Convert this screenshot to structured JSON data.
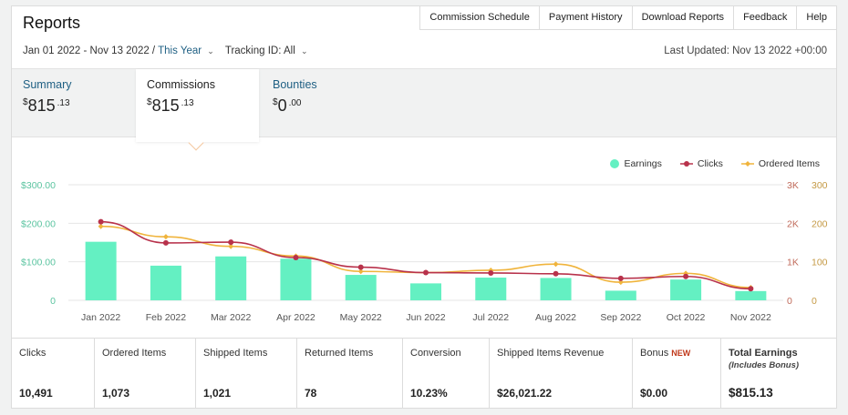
{
  "header": {
    "title": "Reports",
    "nav": [
      "Commission Schedule",
      "Payment History",
      "Download Reports",
      "Feedback",
      "Help"
    ]
  },
  "filters": {
    "date_range": "Jan 01 2022 - Nov 13 2022 /",
    "period": "This Year",
    "tracking": "Tracking ID: All",
    "last_updated": "Last Updated: Nov 13 2022 +00:00"
  },
  "tabs": [
    {
      "label": "Summary",
      "dollars": "815",
      "cents": "13"
    },
    {
      "label": "Commissions",
      "dollars": "815",
      "cents": "13"
    },
    {
      "label": "Bounties",
      "dollars": "0",
      "cents": "00"
    }
  ],
  "legend": {
    "earnings": "Earnings",
    "clicks": "Clicks",
    "ordered": "Ordered Items"
  },
  "colors": {
    "earnings": "#64f0c2",
    "clicks": "#b8324b",
    "ordered": "#f0b43c",
    "link": "#1e5f83"
  },
  "chart_data": {
    "type": "bar",
    "categories": [
      "Jan 2022",
      "Feb 2022",
      "Mar 2022",
      "Apr 2022",
      "May 2022",
      "Jun 2022",
      "Jul 2022",
      "Aug 2022",
      "Sep 2022",
      "Oct 2022",
      "Nov 2022"
    ],
    "series": [
      {
        "name": "Earnings",
        "type": "bar",
        "axis": "left",
        "values": [
          152,
          90,
          114,
          108,
          66,
          44,
          59,
          58,
          25,
          54,
          24
        ]
      },
      {
        "name": "Clicks",
        "type": "line",
        "axis": "right-k",
        "values": [
          2040,
          1490,
          1510,
          1110,
          860,
          720,
          710,
          690,
          570,
          620,
          300
        ]
      },
      {
        "name": "Ordered Items",
        "type": "line",
        "axis": "right",
        "values": [
          192,
          165,
          140,
          115,
          75,
          72,
          78,
          94,
          47,
          70,
          33
        ]
      }
    ],
    "left_axis": {
      "ticks": [
        "$300.00",
        "$200.00",
        "$100.00",
        "0"
      ],
      "ylim": [
        0,
        300
      ]
    },
    "right_axis_k": {
      "ticks": [
        "3K",
        "2K",
        "1K",
        "0"
      ],
      "ylim": [
        0,
        3000
      ]
    },
    "right_axis": {
      "ticks": [
        "300",
        "200",
        "100",
        "0"
      ],
      "ylim": [
        0,
        300
      ]
    },
    "legend_position": "top-right",
    "grid": true
  },
  "stats": [
    {
      "label": "Clicks",
      "value": "10,491"
    },
    {
      "label": "Ordered Items",
      "value": "1,073"
    },
    {
      "label": "Shipped Items",
      "value": "1,021"
    },
    {
      "label": "Returned Items",
      "value": "78"
    },
    {
      "label": "Conversion",
      "value": "10.23%"
    },
    {
      "label": "Shipped Items Revenue",
      "value": "$26,021.22"
    },
    {
      "label": "Bonus",
      "badge": "NEW",
      "value": "$0.00"
    },
    {
      "label": "Total Earnings",
      "sub": "(Includes Bonus)",
      "value": "$815.13"
    }
  ]
}
